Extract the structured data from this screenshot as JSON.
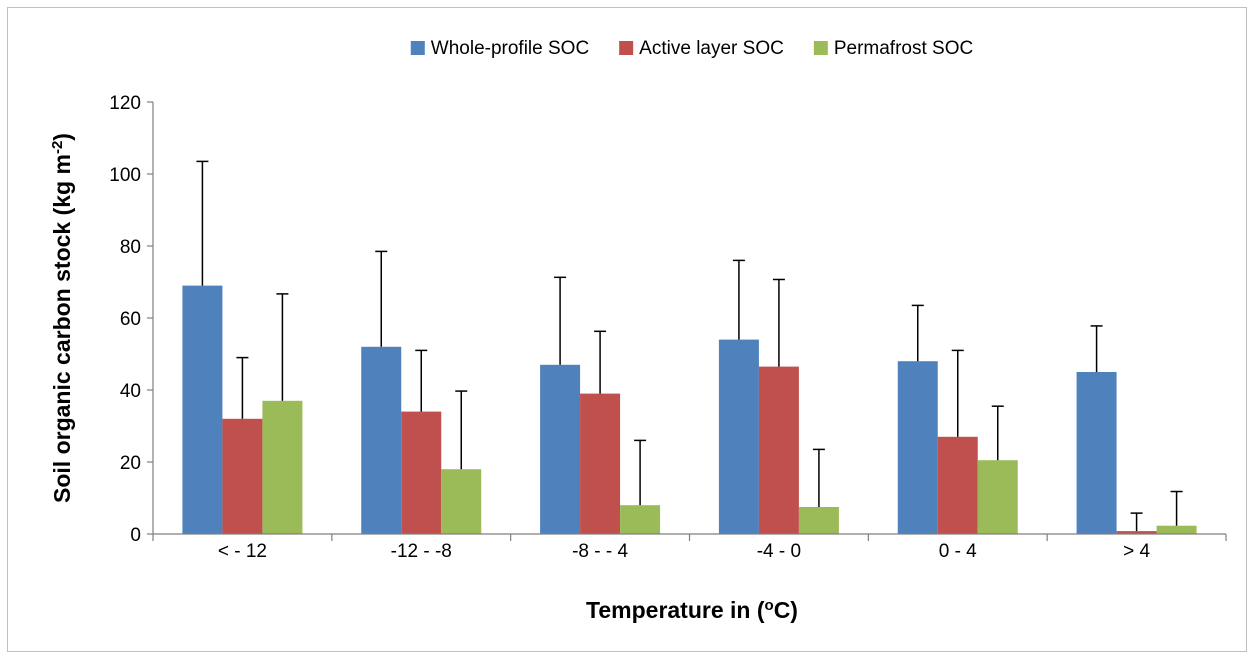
{
  "chart_data": {
    "type": "bar",
    "title": "",
    "xlabel": {
      "main": "Temperature in (",
      "sup": "o",
      "tail": "C)"
    },
    "ylabel": {
      "main": "Soil organic carbon stock (kg m",
      "sup": "-2",
      "tail": ")"
    },
    "ylim": [
      0,
      120
    ],
    "yticks": [
      0,
      20,
      40,
      60,
      80,
      100,
      120
    ],
    "grid": false,
    "legend_position": "top",
    "categories": [
      "< - 12",
      "-12 - -8",
      "-8 - - 4",
      "-4 - 0",
      "0 - 4",
      "> 4"
    ],
    "series": [
      {
        "name": "Whole-profile SOC",
        "color": "#4f81bd",
        "values": [
          69,
          52,
          47,
          54,
          48,
          45
        ],
        "error": [
          34.5,
          26.5,
          24.3,
          22,
          15.5,
          12.8
        ]
      },
      {
        "name": "Active layer SOC",
        "color": "#c0504d",
        "values": [
          32,
          34,
          39,
          46.5,
          27,
          0.8
        ],
        "error": [
          17,
          17,
          17.3,
          24.2,
          24,
          5
        ]
      },
      {
        "name": "Permafrost SOC",
        "color": "#9bbb59",
        "values": [
          37,
          18,
          8,
          7.5,
          20.5,
          2.3
        ],
        "error": [
          29.7,
          21.7,
          18,
          16,
          15,
          9.5
        ]
      }
    ]
  }
}
